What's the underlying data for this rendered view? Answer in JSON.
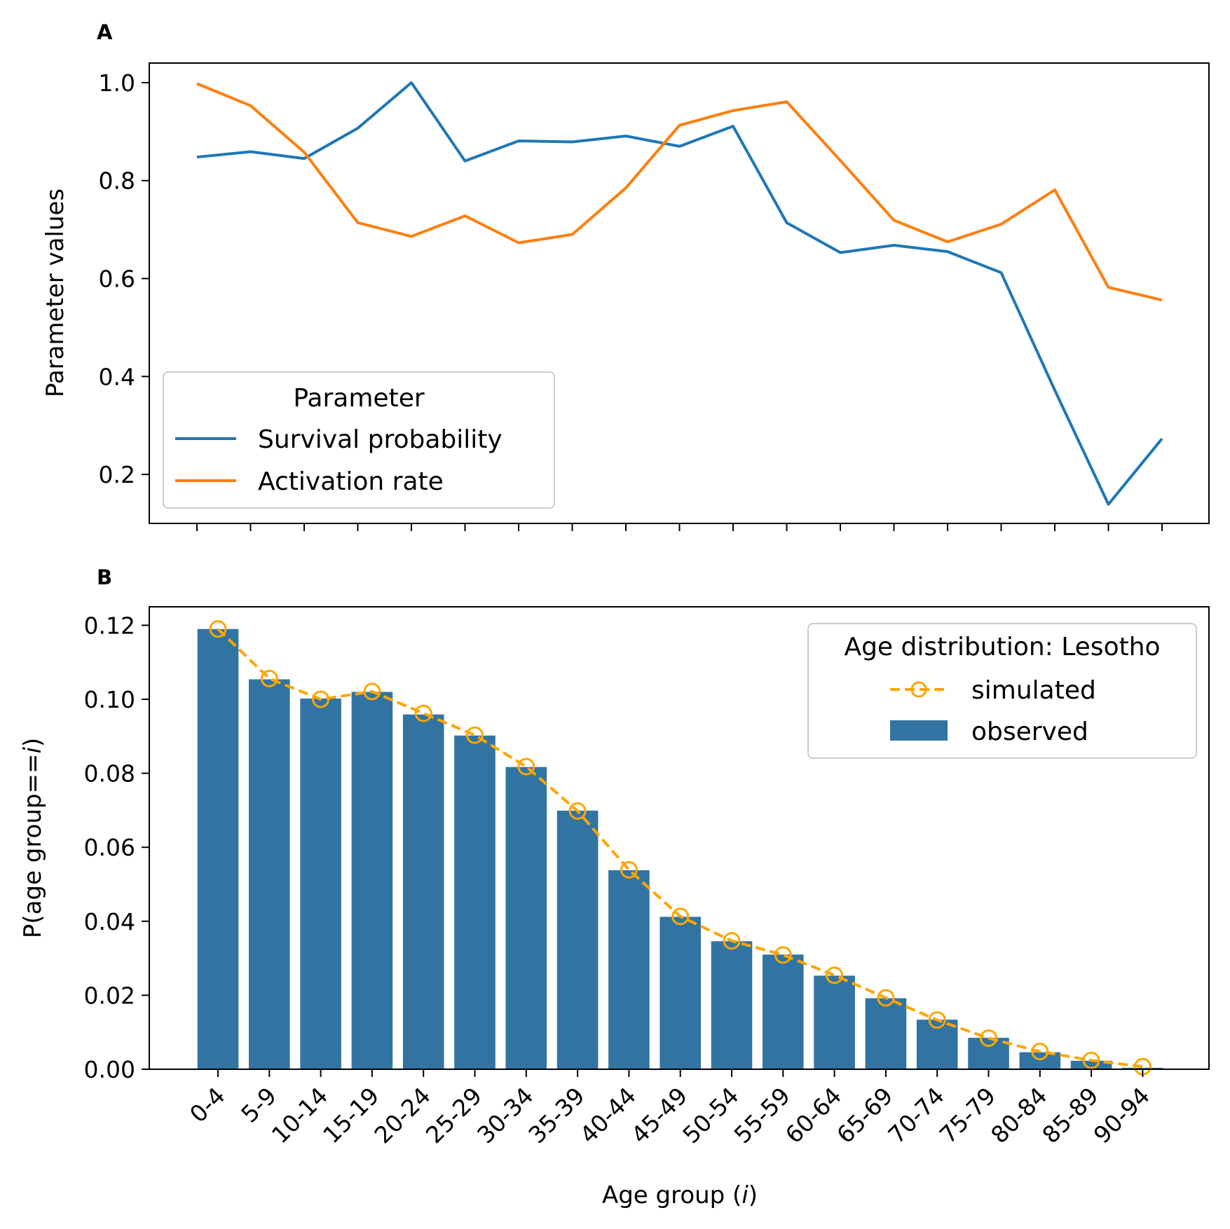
{
  "chart_data": [
    {
      "panel": "A",
      "type": "line",
      "ylabel": "Parameter values",
      "xlabel": "",
      "ylim": [
        0.1,
        1.04
      ],
      "yticks": [
        0.2,
        0.4,
        0.6,
        0.8,
        1.0
      ],
      "ytick_labels": [
        "0.2",
        "0.4",
        "0.6",
        "0.8",
        "1.0"
      ],
      "x": [
        "0-4",
        "5-9",
        "10-14",
        "15-19",
        "20-24",
        "25-29",
        "30-34",
        "35-39",
        "40-44",
        "45-49",
        "50-54",
        "55-59",
        "60-64",
        "65-69",
        "70-74",
        "75-79",
        "80-84",
        "85-89",
        "90-94"
      ],
      "legend": {
        "title": "Parameter",
        "placement": "lower-left"
      },
      "series": [
        {
          "name": "Survival probability",
          "color": "#1f77b4",
          "values": [
            0.848,
            0.859,
            0.845,
            0.907,
            1.0,
            0.84,
            0.881,
            0.879,
            0.891,
            0.87,
            0.911,
            0.714,
            0.653,
            0.668,
            0.655,
            0.612,
            0.372,
            0.139,
            0.273
          ]
        },
        {
          "name": "Activation rate",
          "color": "#ff7f0e",
          "values": [
            0.998,
            0.953,
            0.858,
            0.714,
            0.686,
            0.728,
            0.673,
            0.69,
            0.785,
            0.913,
            0.943,
            0.961,
            0.841,
            0.719,
            0.675,
            0.711,
            0.781,
            0.582,
            0.556
          ]
        }
      ],
      "grid": false
    },
    {
      "panel": "B",
      "type": "bar",
      "xlabel": "Age group (",
      "xlabel_var": "i",
      "xlabel_end": ")",
      "ylabel": "P(age group==",
      "ylabel_var": "i",
      "ylabel_end": ")",
      "ylim": [
        0,
        0.125
      ],
      "yticks": [
        0.0,
        0.02,
        0.04,
        0.06,
        0.08,
        0.1,
        0.12
      ],
      "ytick_labels": [
        "0.00",
        "0.02",
        "0.04",
        "0.06",
        "0.08",
        "0.10",
        "0.12"
      ],
      "categories": [
        "0-4",
        "5-9",
        "10-14",
        "15-19",
        "20-24",
        "25-29",
        "30-34",
        "35-39",
        "40-44",
        "45-49",
        "50-54",
        "55-59",
        "60-64",
        "65-69",
        "70-74",
        "75-79",
        "80-84",
        "85-89",
        "90-94"
      ],
      "legend": {
        "title": "Age distribution: Lesotho",
        "placement": "top-right"
      },
      "series": [
        {
          "name": "observed",
          "kind": "bar",
          "color": "#3274a1",
          "values": [
            0.119,
            0.1054,
            0.1002,
            0.102,
            0.0959,
            0.0902,
            0.0817,
            0.0699,
            0.0538,
            0.0412,
            0.0346,
            0.031,
            0.0253,
            0.0192,
            0.0134,
            0.0085,
            0.0046,
            0.0023,
            0.0004
          ]
        },
        {
          "name": "simulated",
          "kind": "line-dashed-markers",
          "color": "#ffa500",
          "values": [
            0.119,
            0.1056,
            0.1,
            0.1021,
            0.0962,
            0.0903,
            0.0818,
            0.0698,
            0.0539,
            0.0413,
            0.0347,
            0.0309,
            0.0254,
            0.0193,
            0.0133,
            0.0084,
            0.0048,
            0.0024,
            0.0007
          ]
        }
      ],
      "grid": false
    }
  ]
}
